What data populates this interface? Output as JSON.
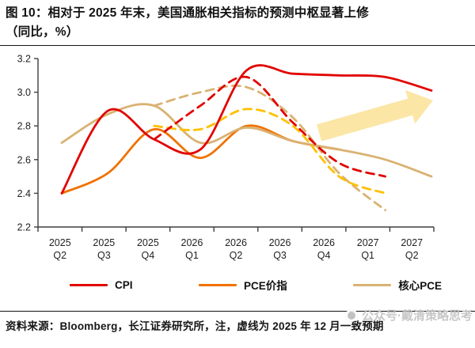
{
  "title": {
    "line1": "图 10：相对于 2025 年末，美国通胀相关指标的预测中枢显著上修",
    "line2": "（同比，%）"
  },
  "footer": {
    "source": "资料来源：Bloomberg，长江证券研究所，注，虚线为 2025 年 12 月一致预期"
  },
  "watermark": {
    "text": "公众号·戴清策略思考"
  },
  "legend": [
    {
      "label": "CPI",
      "color": "#E10500"
    },
    {
      "label": "PCE价指",
      "color": "#F07200"
    },
    {
      "label": "核心PCE",
      "color": "#D9B272"
    }
  ],
  "colors": {
    "cpi_red": "#E10500",
    "pce_orange": "#F07200",
    "core_pce_tan": "#D9B272",
    "pce_forecast_gold": "#FFC000",
    "arrow_fill": "#FBE6A6",
    "axis": "#3f3f3f"
  },
  "chart_data": {
    "type": "line",
    "title": "相对于2025年末，美国通胀相关指标的预测中枢显著上修（同比，%）",
    "xlabel": "",
    "ylabel": "",
    "ylim": [
      2.2,
      3.2
    ],
    "yticks": [
      3.2,
      3.0,
      2.8,
      2.6,
      2.4,
      2.2
    ],
    "grid": false,
    "legend_position": "bottom",
    "categories": [
      "2025 Q2",
      "2025 Q3",
      "2025 Q4",
      "2026 Q1",
      "2026 Q2",
      "2026 Q3",
      "2026 Q4",
      "2027 Q1",
      "2027 Q2"
    ],
    "series": [
      {
        "name": "CPI",
        "style": "solid",
        "color": "#E10500",
        "values": [
          2.4,
          2.89,
          2.72,
          2.66,
          3.13,
          3.11,
          3.1,
          3.09,
          3.01
        ]
      },
      {
        "name": "PCE价指",
        "style": "solid",
        "color": "#F07200",
        "values": [
          2.4,
          2.52,
          2.78,
          2.61,
          2.8,
          2.71,
          2.66,
          null,
          null
        ]
      },
      {
        "name": "核心PCE",
        "style": "solid",
        "color": "#D9B272",
        "values": [
          2.7,
          2.87,
          2.92,
          2.7,
          2.79,
          2.71,
          2.66,
          2.6,
          2.5
        ]
      },
      {
        "name": "CPI（2025年12月一致预期）",
        "style": "dashed",
        "color": "#E10500",
        "values": [
          null,
          null,
          2.72,
          2.92,
          3.09,
          2.82,
          2.58,
          2.5,
          null
        ]
      },
      {
        "name": "PCE价指（2025年12月一致预期）",
        "style": "dashed",
        "color": "#FFC000",
        "values": [
          null,
          null,
          2.8,
          2.78,
          2.9,
          2.8,
          2.5,
          2.4,
          null
        ]
      },
      {
        "name": "核心PCE（2025年12月一致预期）",
        "style": "dashed",
        "color": "#D9B272",
        "values": [
          null,
          null,
          2.92,
          3.0,
          3.03,
          2.85,
          2.52,
          2.3,
          null
        ]
      }
    ],
    "annotation": {
      "type": "arrow",
      "direction": "up-right",
      "color": "#FBE6A6"
    }
  }
}
